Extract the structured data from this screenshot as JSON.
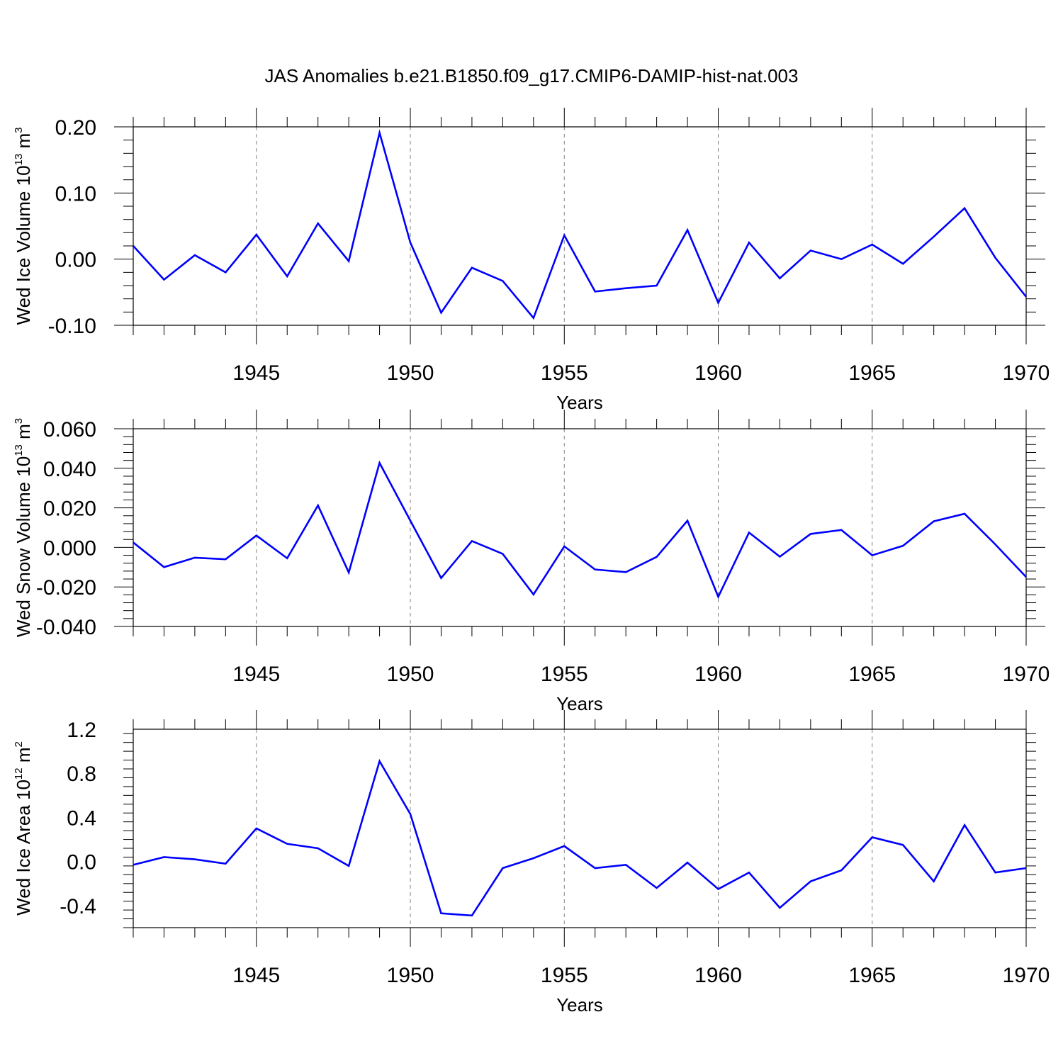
{
  "figure": {
    "title": "JAS Anomalies b.e21.B1850.f09_g17.CMIP6-DAMIP-hist-nat.003"
  },
  "style": {
    "line_color": "#0000ff",
    "axis_color": "#000000",
    "grid_color": "#808080"
  },
  "chart_data": [
    {
      "type": "line",
      "title": "JAS Anomalies b.e21.B1850.f09_g17.CMIP6-DAMIP-hist-nat.003",
      "ylabel": {
        "text": "Wed Ice Volume 10",
        "exp": "13",
        "unit": " m",
        "unit_exp": "3"
      },
      "xlabel": "Years",
      "xlim": [
        1941,
        1970
      ],
      "ylim": [
        -0.1,
        0.2
      ],
      "grid": "vertical dashed at major x ticks",
      "xticks": [
        1945,
        1950,
        1955,
        1960,
        1965,
        1970
      ],
      "xtick_labels": [
        "1945",
        "1950",
        "1955",
        "1960",
        "1965",
        "1970"
      ],
      "yticks": [
        -0.1,
        0.0,
        0.1,
        0.2
      ],
      "ytick_labels": [
        "-0.10",
        "0.00",
        "0.10",
        "0.20"
      ],
      "x": [
        1941,
        1942,
        1943,
        1944,
        1945,
        1946,
        1947,
        1948,
        1949,
        1950,
        1951,
        1952,
        1953,
        1954,
        1955,
        1956,
        1957,
        1958,
        1959,
        1960,
        1961,
        1962,
        1963,
        1964,
        1965,
        1966,
        1967,
        1968,
        1969,
        1970
      ],
      "series": [
        {
          "values": [
            0.02,
            -0.031,
            0.006,
            -0.02,
            0.037,
            -0.026,
            0.054,
            -0.003,
            0.191,
            0.025,
            -0.081,
            -0.013,
            -0.033,
            -0.089,
            0.036,
            -0.049,
            -0.044,
            -0.04,
            0.044,
            -0.066,
            0.025,
            -0.029,
            0.013,
            0.0,
            0.022,
            -0.007,
            0.034,
            0.077,
            0.002,
            -0.057
          ]
        }
      ]
    },
    {
      "type": "line",
      "ylabel": {
        "text": "Wed Snow Volume 10",
        "exp": "13",
        "unit": " m",
        "unit_exp": "3"
      },
      "xlabel": "Years",
      "xlim": [
        1941,
        1970
      ],
      "ylim": [
        -0.04,
        0.06
      ],
      "grid": "vertical dashed at major x ticks",
      "xticks": [
        1945,
        1950,
        1955,
        1960,
        1965,
        1970
      ],
      "xtick_labels": [
        "1945",
        "1950",
        "1955",
        "1960",
        "1965",
        "1970"
      ],
      "yticks": [
        -0.04,
        -0.02,
        0.0,
        0.02,
        0.04,
        0.06
      ],
      "ytick_labels": [
        "-0.040",
        "-0.020",
        "0.000",
        "0.020",
        "0.040",
        "0.060"
      ],
      "x": [
        1941,
        1942,
        1943,
        1944,
        1945,
        1946,
        1947,
        1948,
        1949,
        1950,
        1951,
        1952,
        1953,
        1954,
        1955,
        1956,
        1957,
        1958,
        1959,
        1960,
        1961,
        1962,
        1963,
        1964,
        1965,
        1966,
        1967,
        1968,
        1969,
        1970
      ],
      "series": [
        {
          "values": [
            0.0025,
            -0.01,
            -0.0052,
            -0.006,
            0.006,
            -0.0055,
            0.0212,
            -0.0127,
            0.0427,
            0.0135,
            -0.0155,
            0.0032,
            -0.0033,
            -0.0238,
            0.0005,
            -0.0112,
            -0.0125,
            -0.0048,
            0.0135,
            -0.025,
            0.0075,
            -0.0047,
            0.0068,
            0.0088,
            -0.004,
            0.0008,
            0.0132,
            0.017,
            0.0015,
            -0.015
          ]
        }
      ]
    },
    {
      "type": "line",
      "ylabel": {
        "text": "Wed Ice Area 10",
        "exp": "12",
        "unit": " m",
        "unit_exp": "2"
      },
      "xlabel": "Years",
      "xlim": [
        1941,
        1970
      ],
      "ylim": [
        -0.6,
        1.2
      ],
      "grid": "vertical dashed at major x ticks",
      "xticks": [
        1945,
        1950,
        1955,
        1960,
        1965,
        1970
      ],
      "xtick_labels": [
        "1945",
        "1950",
        "1955",
        "1960",
        "1965",
        "1970"
      ],
      "yticks": [
        -0.4,
        0.0,
        0.4,
        0.8,
        1.2
      ],
      "ytick_labels": [
        "-0.4",
        "0.0",
        "0.4",
        "0.8",
        "1.2"
      ],
      "x": [
        1941,
        1942,
        1943,
        1944,
        1945,
        1946,
        1947,
        1948,
        1949,
        1950,
        1951,
        1952,
        1953,
        1954,
        1955,
        1956,
        1957,
        1958,
        1959,
        1960,
        1961,
        1962,
        1963,
        1964,
        1965,
        1966,
        1967,
        1968,
        1969,
        1970
      ],
      "series": [
        {
          "values": [
            -0.03,
            0.04,
            0.02,
            -0.02,
            0.3,
            0.16,
            0.12,
            -0.04,
            0.91,
            0.43,
            -0.47,
            -0.49,
            -0.06,
            0.03,
            0.14,
            -0.06,
            -0.03,
            -0.24,
            -0.01,
            -0.25,
            -0.1,
            -0.42,
            -0.18,
            -0.08,
            0.22,
            0.15,
            -0.18,
            0.33,
            -0.1,
            -0.06
          ]
        }
      ]
    }
  ]
}
